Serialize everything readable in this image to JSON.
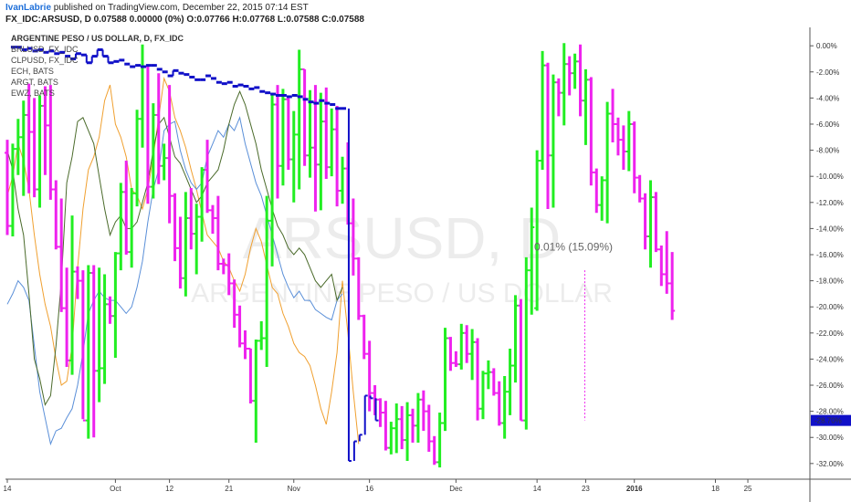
{
  "header": {
    "author": "IvanLabrie",
    "published_text": " published on TradingView.com, December 22, 2015 07:14 EST",
    "symbol_line": "FX_IDC:ARSUSD, D  0.07588 0.00000 (0%)  O:0.07766 H:0.07768 L:0.07588 C:0.07588"
  },
  "chart_data": {
    "type": "ohlc",
    "title": "ARGENTINE PESO / US DOLLAR, D, FX_IDC",
    "watermark_symbol": "ARSUSD, D",
    "watermark_name": "ARGENTINE PESO / US DOLLAR",
    "legend": [
      "BRLUSD, FX_IDC",
      "CLPUSD, FX_IDC",
      "ECH, BATS",
      "ARGT, BATS",
      "EWZ, BATS"
    ],
    "y_axis": {
      "unit": "%",
      "ticks": [
        "0.00%",
        "-2.00%",
        "-4.00%",
        "-6.00%",
        "-8.00%",
        "-10.00%",
        "-12.00%",
        "-14.00%",
        "-16.00%",
        "-18.00%",
        "-20.00%",
        "-22.00%",
        "-24.00%",
        "-26.00%",
        "-28.00%",
        "-30.00%",
        "-32.00%"
      ],
      "ylim": [
        1.2,
        -33.2
      ],
      "last_value_label": "-28.70%",
      "last_value": -28.7
    },
    "x_axis": {
      "tick_labels": [
        "14",
        "Oct",
        "12",
        "21",
        "Nov",
        "16",
        "Dec",
        "14",
        "23",
        "2016",
        "18",
        "25"
      ],
      "tick_index": [
        0,
        20,
        30,
        41,
        53,
        67,
        83,
        98,
        107,
        116,
        131,
        137
      ]
    },
    "measurement_label": "0.01% (15.09%)",
    "colors": {
      "up": "#22ee22",
      "down": "#ee22ee",
      "blue_series": "#1010c8",
      "orange_series": "#f0a030",
      "light_blue_series": "#5a8fd8",
      "olive_series": "#4a6a2a",
      "axis_label_bg": "#1010c8"
    },
    "series": [
      {
        "kind": "ohlc",
        "values": [
          [
            -8.2,
            -7.2,
            -14.5,
            -13.8
          ],
          [
            -13.8,
            -7.5,
            -14.6,
            -7.9
          ],
          [
            -7.9,
            -5.6,
            -9.9,
            -7.0
          ],
          [
            -7.0,
            -4.2,
            -11.5,
            -5.3
          ],
          [
            -5.3,
            -2.9,
            -11.3,
            -6.6
          ],
          [
            -6.6,
            -4.0,
            -11.6,
            -11.0
          ],
          [
            -11.0,
            -3.8,
            -12.4,
            -4.6
          ],
          [
            -4.6,
            -3.1,
            -9.9,
            -6.1
          ],
          [
            -6.1,
            -3.0,
            -11.8,
            -11.0
          ],
          [
            -11.0,
            -10.3,
            -15.6,
            -15.4
          ],
          [
            -15.4,
            -11.7,
            -20.4,
            -20.1
          ],
          [
            -20.1,
            -17.0,
            -24.6,
            -24.1
          ],
          [
            -24.1,
            -13.0,
            -25.2,
            -17.3
          ],
          [
            -17.3,
            -16.9,
            -19.4,
            -18.0
          ],
          [
            -18.0,
            -17.2,
            -28.6,
            -28.7
          ],
          [
            -28.7,
            -16.8,
            -30.1,
            -17.4
          ],
          [
            -17.4,
            -16.8,
            -30.0,
            -24.9
          ],
          [
            -24.9,
            -17.0,
            -27.3,
            -24.7
          ],
          [
            -24.7,
            -17.5,
            -25.9,
            -19.8
          ],
          [
            -19.8,
            -19.2,
            -21.3,
            -20.7
          ],
          [
            -20.7,
            -15.8,
            -23.9,
            -15.9
          ],
          [
            -15.9,
            -10.5,
            -17.2,
            -11.2
          ],
          [
            -11.2,
            -8.8,
            -16.0,
            -15.8
          ],
          [
            -15.8,
            -10.9,
            -17.0,
            -11.3
          ],
          [
            -11.3,
            -4.9,
            -12.3,
            -5.6
          ],
          [
            -5.6,
            0.1,
            -7.8,
            -1.6
          ],
          [
            -1.6,
            -1.6,
            -12.1,
            -10.8
          ],
          [
            -10.8,
            -4.4,
            -11.7,
            -5.3
          ],
          [
            -5.3,
            -2.1,
            -10.6,
            -9.2
          ],
          [
            -9.2,
            -7.5,
            -10.3,
            -8.6
          ],
          [
            -8.6,
            -3.0,
            -13.6,
            -11.5
          ],
          [
            -11.5,
            -11.3,
            -16.5,
            -15.5
          ],
          [
            -15.5,
            -13.1,
            -18.6,
            -17.8
          ],
          [
            -17.8,
            -11.2,
            -19.2,
            -13.2
          ],
          [
            -13.2,
            -10.9,
            -15.6,
            -14.4
          ],
          [
            -14.4,
            -12.1,
            -17.5,
            -13.1
          ],
          [
            -13.1,
            -9.3,
            -15.0,
            -9.5
          ],
          [
            -9.5,
            -7.2,
            -12.8,
            -12.6
          ],
          [
            -12.6,
            -12.2,
            -14.4,
            -13.2
          ],
          [
            -13.2,
            -11.5,
            -17.2,
            -16.7
          ],
          [
            -16.7,
            -16.3,
            -17.5,
            -16.8
          ],
          [
            -16.8,
            -15.9,
            -19.1,
            -18.2
          ],
          [
            -18.2,
            -17.9,
            -21.6,
            -20.6
          ],
          [
            -20.6,
            -19.9,
            -23.1,
            -22.8
          ],
          [
            -22.8,
            -21.8,
            -24.0,
            -23.2
          ],
          [
            -23.2,
            -23.2,
            -27.4,
            -27.2
          ],
          [
            -27.2,
            -22.5,
            -30.4,
            -22.6
          ],
          [
            -22.6,
            -21.1,
            -23.3,
            -22.4
          ]
        ]
      },
      {
        "kind": "ohlc",
        "values": [
          [
            -22.4,
            -11.5,
            -24.6,
            -13.4
          ],
          [
            -13.4,
            -3.6,
            -16.9,
            -4.5
          ],
          [
            -4.5,
            -3.0,
            -11.7,
            -9.2
          ],
          [
            -9.2,
            -3.3,
            -10.7,
            -4.1
          ],
          [
            -4.1,
            -4.0,
            -9.5,
            -8.7
          ],
          [
            -8.7,
            -5.0,
            -12.0,
            -6.8
          ],
          [
            -6.8,
            -0.3,
            -11.0,
            -1.8
          ],
          [
            -1.8,
            -1.8,
            -9.2,
            -8.4
          ],
          [
            -8.4,
            -3.4,
            -10.1,
            -7.8
          ],
          [
            -7.8,
            -3.0,
            -12.7,
            -9.1
          ],
          [
            -9.1,
            -3.6,
            -12.6,
            -5.8
          ],
          [
            -5.8,
            -3.2,
            -10.2,
            -9.3
          ],
          [
            -9.3,
            -4.8,
            -10.0,
            -6.4
          ],
          [
            -6.4,
            -4.6,
            -12.3,
            -11.1
          ],
          [
            -11.1,
            -8.5,
            -12.1,
            -9.4
          ],
          [
            -9.4,
            -7.4,
            -13.7,
            -13.6
          ],
          [
            -13.6,
            -11.7,
            -17.6,
            -16.3
          ],
          [
            -16.3,
            -16.2,
            -21.0,
            -20.7
          ],
          [
            -20.7,
            -20.6,
            -24.0,
            -23.6
          ],
          [
            -23.6,
            -22.6,
            -28.0,
            -26.6
          ],
          [
            -26.6,
            -26.0,
            -28.3,
            -27.1
          ],
          [
            -27.1,
            -27.0,
            -29.2,
            -28.1
          ],
          [
            -28.1,
            -27.2,
            -31.0,
            -30.8
          ],
          [
            -30.8,
            -28.8,
            -31.3,
            -29.3
          ],
          [
            -29.3,
            -27.4,
            -31.2,
            -28.6
          ],
          [
            -28.6,
            -27.6,
            -30.9,
            -30.2
          ],
          [
            -30.2,
            -27.3,
            -31.8,
            -28.3
          ],
          [
            -28.3,
            -27.8,
            -30.4,
            -29.1
          ],
          [
            -29.1,
            -26.6,
            -30.4,
            -27.1
          ],
          [
            -27.1,
            -26.4,
            -29.5,
            -28.0
          ],
          [
            -28.0,
            -27.5,
            -31.1,
            -30.3
          ],
          [
            -30.3,
            -29.9,
            -32.1,
            -31.9
          ],
          [
            -31.9,
            -28.1,
            -32.3,
            -28.9
          ],
          [
            -28.9,
            -21.6,
            -29.5,
            -22.4
          ],
          [
            -22.4,
            -22.3,
            -24.9,
            -24.3
          ],
          [
            -24.3,
            -23.4,
            -24.6,
            -24.4
          ],
          [
            -24.4,
            -21.3,
            -24.8,
            -22.0
          ],
          [
            -22.0,
            -21.4,
            -24.3,
            -23.6
          ],
          [
            -23.6,
            -21.7,
            -25.6,
            -22.7
          ],
          [
            -22.7,
            -22.4,
            -28.7,
            -27.8
          ],
          [
            -27.8,
            -24.9,
            -28.6,
            -25.1
          ],
          [
            -25.1,
            -24.1,
            -26.3,
            -25.0
          ],
          [
            -25.0,
            -24.7,
            -26.8,
            -26.6
          ],
          [
            -26.6,
            -25.7,
            -29.1,
            -28.9
          ],
          [
            -28.9,
            -25.3,
            -30.1,
            -26.5
          ],
          [
            -26.5,
            -23.2,
            -28.3,
            -24.5
          ],
          [
            -24.5,
            -19.1,
            -25.8,
            -19.9
          ],
          [
            -19.9,
            -19.4,
            -28.7,
            -28.7
          ],
          [
            -28.7,
            -16.2,
            -29.4,
            -17.2
          ],
          [
            -17.2,
            -12.4,
            -20.6,
            -13.9
          ]
        ]
      },
      {
        "kind": "ohlc",
        "values": [
          [
            -20.1,
            -8.0,
            -20.3,
            -8.8
          ],
          [
            -8.8,
            -0.4,
            -9.5,
            -1.5
          ],
          [
            -1.5,
            -1.3,
            -12.5,
            -8.4
          ],
          [
            -8.4,
            -2.2,
            -12.4,
            -2.8
          ],
          [
            -2.8,
            -2.5,
            -5.4,
            -3.6
          ],
          [
            -3.6,
            0.2,
            -6.1,
            -1.4
          ],
          [
            -1.4,
            -0.8,
            -3.8,
            -2.1
          ],
          [
            -2.1,
            -0.6,
            -3.3,
            -1.2
          ],
          [
            -1.2,
            0.1,
            -5.4,
            -4.2
          ],
          [
            -4.2,
            -1.8,
            -7.6,
            -2.6
          ],
          [
            -2.6,
            -2.4,
            -10.7,
            -9.7
          ],
          [
            -9.7,
            -9.4,
            -12.8,
            -12.2
          ],
          [
            -12.2,
            -10.0,
            -13.4,
            -10.3
          ],
          [
            -10.3,
            -4.3,
            -13.6,
            -5.2
          ],
          [
            -5.2,
            -3.3,
            -7.4,
            -6.0
          ],
          [
            -6.0,
            -5.5,
            -8.4,
            -7.2
          ],
          [
            -7.2,
            -6.1,
            -9.5,
            -8.1
          ],
          [
            -8.1,
            -5.0,
            -9.6,
            -6.0
          ],
          [
            -6.0,
            -5.8,
            -11.3,
            -10.1
          ],
          [
            -10.1,
            -9.9,
            -12.0,
            -11.7
          ],
          [
            -11.7,
            -11.3,
            -15.6,
            -14.6
          ],
          [
            -14.6,
            -10.3,
            -17.0,
            -11.6
          ],
          [
            -11.6,
            -11.2,
            -15.8,
            -15.6
          ],
          [
            -15.6,
            -15.3,
            -18.4,
            -17.5
          ],
          [
            -17.5,
            -14.2,
            -19.0,
            -18.2
          ],
          [
            -18.2,
            -15.8,
            -21.0,
            -20.3
          ]
        ]
      }
    ],
    "blue_series": {
      "values": [
        -0.1,
        -0.1,
        -0.3,
        -0.2,
        -0.4,
        -0.3,
        -0.5,
        -0.4,
        -0.6,
        -0.5,
        -0.8,
        -1.0,
        -0.6,
        -0.7,
        -1.3,
        -0.8,
        -0.3,
        -0.8,
        -1.3,
        -1.2,
        -1.1,
        -1.4,
        -1.6,
        -1.5,
        -1.6,
        -1.5,
        -1.5,
        -1.8,
        -2.0,
        -2.3,
        -1.9,
        -2.1,
        -2.2,
        -2.4,
        -2.6,
        -2.6,
        -2.3,
        -2.5,
        -2.8,
        -2.9,
        -2.8,
        -3.1,
        -3.0,
        -3.1,
        -3.3,
        -3.2,
        -3.5,
        -3.6,
        -3.7,
        -3.8,
        -3.8,
        -3.9,
        -3.8,
        -3.9,
        -4.1,
        -4.3,
        -4.4,
        -4.2,
        -4.4,
        -4.5,
        -4.8,
        -4.8,
        -31.8,
        -30.3,
        -29.8,
        -26.8,
        -27.0,
        -28.7
      ],
      "jump_index": 62
    },
    "orange_series": [
      -11.5,
      -10.0,
      -7.5,
      -8.8,
      -11.0,
      -14.5,
      -17.5,
      -19.8,
      -21.5,
      -24.0,
      -26.0,
      -25.7,
      -23.0,
      -17.0,
      -12.5,
      -9.5,
      -8.5,
      -7.0,
      -4.2,
      -3.0,
      -6.0,
      -7.0,
      -8.5,
      -11.0,
      -11.5,
      -12.5,
      -11.0,
      -8.5,
      -5.5,
      -2.5,
      -3.5,
      -5.5,
      -6.5,
      -7.8,
      -9.5,
      -11.0,
      -12.8,
      -14.5,
      -15.0,
      -15.5,
      -16.5,
      -17.0,
      -18.0,
      -18.8,
      -17.5,
      -15.5,
      -14.0,
      -15.0,
      -16.8,
      -18.5,
      -19.0,
      -20.5,
      -21.5,
      -22.8,
      -23.5,
      -23.8,
      -24.5,
      -26.0,
      -27.8,
      -29.0,
      -26.5,
      -23.5,
      -18.0,
      -22.0,
      -26.5,
      -30.5
    ],
    "light_blue_series": [
      -19.8,
      -19.0,
      -18.0,
      -18.5,
      -19.5,
      -23.0,
      -26.5,
      -28.5,
      -30.5,
      -29.5,
      -29.3,
      -28.5,
      -27.8,
      -26.0,
      -23.5,
      -20.5,
      -19.5,
      -18.8,
      -19.3,
      -19.5,
      -19.5,
      -20.0,
      -20.5,
      -20.0,
      -18.5,
      -16.5,
      -13.5,
      -11.0,
      -9.5,
      -6.5,
      -6.0,
      -5.8,
      -8.0,
      -9.5,
      -10.5,
      -11.0,
      -10.5,
      -8.5,
      -7.5,
      -6.5,
      -7.0,
      -6.0,
      -6.5,
      -5.5,
      -7.5,
      -9.0,
      -10.5,
      -11.5,
      -13.0,
      -14.5,
      -16.0,
      -17.5,
      -18.5,
      -19.3,
      -18.8,
      -19.5,
      -19.5,
      -20.2,
      -20.5,
      -20.8,
      -21.0,
      -19.5,
      -19.0
    ],
    "olive_series": [
      -8.0,
      -9.5,
      -12.5,
      -14.5,
      -19.0,
      -24.0,
      -25.5,
      -27.5,
      -26.8,
      -23.0,
      -18.0,
      -10.5,
      -8.5,
      -5.8,
      -5.5,
      -6.5,
      -7.5,
      -10.0,
      -12.5,
      -14.5,
      -13.5,
      -13.0,
      -14.0,
      -14.0,
      -13.5,
      -12.0,
      -10.5,
      -8.0,
      -6.0,
      -5.5,
      -7.0,
      -8.5,
      -9.0,
      -10.0,
      -11.0,
      -12.0,
      -11.5,
      -10.5,
      -10.0,
      -9.5,
      -8.0,
      -6.0,
      -4.5,
      -3.5,
      -4.5,
      -6.0,
      -7.5,
      -9.5,
      -11.0,
      -12.5,
      -13.8,
      -14.5,
      -15.5,
      -16.0,
      -15.5,
      -16.0,
      -17.0,
      -18.0,
      -18.5,
      -18.0,
      -17.5,
      -19.5,
      -18.5
    ]
  }
}
